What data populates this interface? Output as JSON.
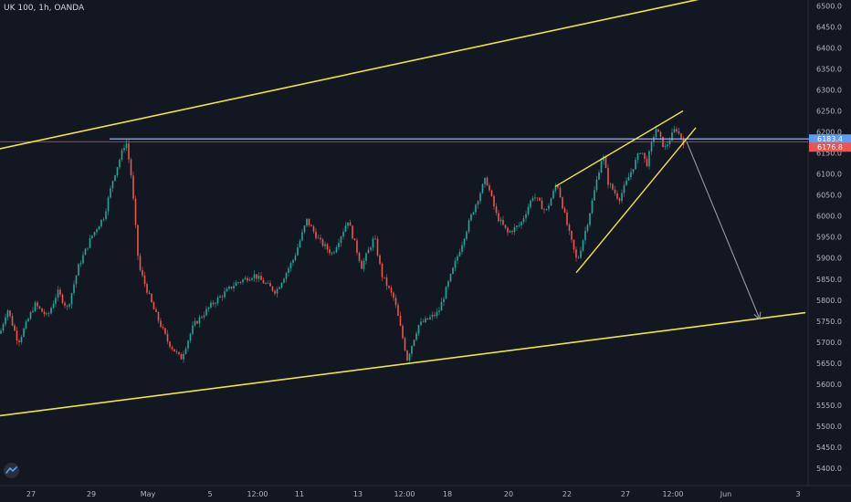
{
  "header": {
    "symbol": "UK 100, 1h, OANDA"
  },
  "colors": {
    "background": "#131722",
    "up": "#26a69a",
    "down": "#ef5350",
    "channel": "#f0e442",
    "wedge": "#f0e442",
    "projection": "#9598a1",
    "price_tag_blue": "#5b9cf6",
    "price_tag_red": "#ef5350",
    "axis_text": "#b2b5be"
  },
  "chart_data": {
    "type": "candlestick",
    "y_axis": {
      "ticks": [
        "6500.0",
        "6450.0",
        "6400.0",
        "6350.0",
        "6300.0",
        "6250.0",
        "6200.0",
        "6150.0",
        "6100.0",
        "6050.0",
        "6000.0",
        "5950.0",
        "5900.0",
        "5850.0",
        "5800.0",
        "5750.0",
        "5700.0",
        "5650.0",
        "5600.0",
        "5550.0",
        "5500.0",
        "5450.0",
        "5400.0"
      ],
      "ylim": [
        5380,
        6510
      ]
    },
    "x_axis": {
      "ticks": [
        "27",
        "29",
        "May",
        "5",
        "12:00",
        "11",
        "13",
        "12:00",
        "18",
        "20",
        "22",
        "27",
        "12:00",
        "Jun",
        "3"
      ]
    },
    "price_tags": [
      {
        "label": "6183.4",
        "value": 6183.4,
        "color": "blue"
      },
      {
        "label": "6176.8",
        "value": 6176.8,
        "color": "red"
      }
    ],
    "path_points": [
      [
        0,
        5720
      ],
      [
        8,
        5780
      ],
      [
        20,
        5700
      ],
      [
        38,
        5790
      ],
      [
        52,
        5760
      ],
      [
        63,
        5820
      ],
      [
        74,
        5780
      ],
      [
        86,
        5880
      ],
      [
        100,
        5950
      ],
      [
        114,
        6000
      ],
      [
        124,
        6090
      ],
      [
        138,
        6180
      ],
      [
        144,
        6090
      ],
      [
        152,
        5880
      ],
      [
        168,
        5780
      ],
      [
        184,
        5700
      ],
      [
        198,
        5660
      ],
      [
        212,
        5740
      ],
      [
        232,
        5790
      ],
      [
        258,
        5840
      ],
      [
        278,
        5860
      ],
      [
        302,
        5820
      ],
      [
        322,
        5900
      ],
      [
        336,
        5990
      ],
      [
        350,
        5940
      ],
      [
        364,
        5910
      ],
      [
        381,
        5990
      ],
      [
        396,
        5880
      ],
      [
        410,
        5950
      ],
      [
        418,
        5860
      ],
      [
        432,
        5800
      ],
      [
        446,
        5660
      ],
      [
        458,
        5740
      ],
      [
        480,
        5770
      ],
      [
        494,
        5860
      ],
      [
        516,
        6000
      ],
      [
        532,
        6090
      ],
      [
        544,
        6000
      ],
      [
        556,
        5960
      ],
      [
        570,
        5980
      ],
      [
        584,
        6050
      ],
      [
        598,
        6010
      ],
      [
        610,
        6080
      ],
      [
        622,
        5970
      ],
      [
        632,
        5890
      ],
      [
        644,
        5990
      ],
      [
        660,
        6150
      ],
      [
        666,
        6080
      ],
      [
        678,
        6040
      ],
      [
        690,
        6100
      ],
      [
        702,
        6160
      ],
      [
        708,
        6120
      ],
      [
        718,
        6210
      ],
      [
        728,
        6160
      ],
      [
        740,
        6210
      ],
      [
        750,
        6170
      ]
    ],
    "annotations": {
      "upper_channel": [
        [
          0,
          6160
        ],
        [
          775,
          6520
        ]
      ],
      "lower_channel": [
        [
          0,
          5525
        ],
        [
          882,
          5770
        ]
      ],
      "resistance_line": [
        [
          120,
          6183.4
        ],
        [
          900,
          6183.4
        ]
      ],
      "wedge_upper": [
        [
          608,
          6070
        ],
        [
          748,
          6250
        ]
      ],
      "wedge_lower": [
        [
          631,
          5865
        ],
        [
          762,
          6210
        ]
      ],
      "projection_arrow": [
        [
          752,
          6176.8
        ],
        [
          832,
          5755
        ]
      ]
    }
  }
}
